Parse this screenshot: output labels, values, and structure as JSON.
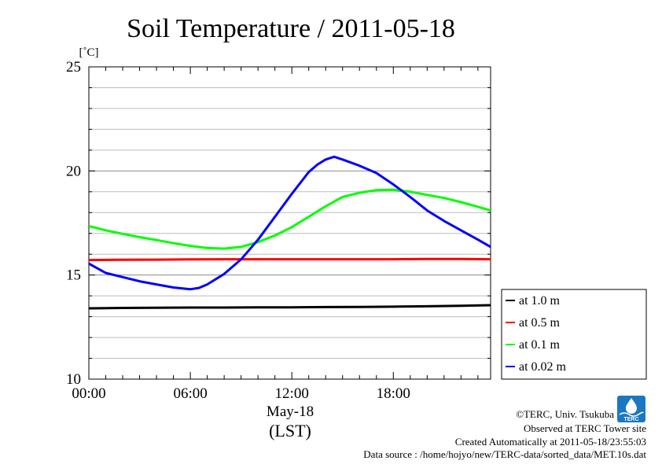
{
  "chart_data": {
    "type": "line",
    "title": "Soil Temperature / 2011-05-18",
    "ylabel_unit": "[˚C]",
    "xlabel": "(LST)",
    "date_label": "May-18",
    "ylim": [
      10,
      25
    ],
    "xlim": [
      0,
      23.75
    ],
    "y_ticks": [
      10,
      15,
      20,
      25
    ],
    "y_minor_step": 1,
    "x_ticks": [
      0,
      6,
      12,
      18
    ],
    "x_tick_labels": [
      "00:00",
      "06:00",
      "12:00",
      "18:00"
    ],
    "grid": true,
    "legend_position": "right",
    "series": [
      {
        "name": "at 1.0 m",
        "color": "#000000",
        "x": [
          0,
          2,
          4,
          6,
          8,
          10,
          12,
          14,
          16,
          18,
          20,
          22,
          23.75
        ],
        "y": [
          13.4,
          13.42,
          13.43,
          13.44,
          13.44,
          13.45,
          13.45,
          13.46,
          13.47,
          13.48,
          13.5,
          13.52,
          13.55
        ]
      },
      {
        "name": "at 0.5 m",
        "color": "#ff0000",
        "x": [
          0,
          2,
          4,
          6,
          8,
          10,
          12,
          14,
          16,
          18,
          20,
          22,
          23.75
        ],
        "y": [
          15.72,
          15.73,
          15.74,
          15.75,
          15.76,
          15.76,
          15.76,
          15.76,
          15.76,
          15.76,
          15.77,
          15.77,
          15.76
        ]
      },
      {
        "name": "at 0.1 m",
        "color": "#00ff00",
        "x": [
          0,
          1,
          2,
          3,
          4,
          5,
          6,
          7,
          8,
          9,
          10,
          11,
          12,
          13,
          14,
          15,
          16,
          17,
          18,
          19,
          20,
          21,
          22,
          23,
          23.75
        ],
        "y": [
          17.35,
          17.15,
          16.98,
          16.82,
          16.68,
          16.53,
          16.4,
          16.3,
          16.27,
          16.35,
          16.58,
          16.9,
          17.3,
          17.8,
          18.3,
          18.75,
          18.95,
          19.08,
          19.1,
          19.0,
          18.85,
          18.7,
          18.5,
          18.28,
          18.1
        ]
      },
      {
        "name": "at 0.02 m",
        "color": "#0000ff",
        "x": [
          0,
          1,
          2,
          3,
          4,
          5,
          6,
          6.5,
          7,
          8,
          9,
          10,
          11,
          12,
          13,
          13.5,
          14,
          14.5,
          15,
          16,
          17,
          18,
          19,
          20,
          21,
          22,
          23,
          23.75
        ],
        "y": [
          15.55,
          15.1,
          14.9,
          14.7,
          14.55,
          14.4,
          14.32,
          14.38,
          14.55,
          15.05,
          15.75,
          16.7,
          17.8,
          18.9,
          19.95,
          20.3,
          20.55,
          20.68,
          20.55,
          20.25,
          19.9,
          19.35,
          18.75,
          18.1,
          17.6,
          17.15,
          16.7,
          16.35
        ]
      }
    ]
  },
  "footer": {
    "copyright": "©TERC, Univ. Tsukuba",
    "observed": "Observed at TERC Tower site",
    "created": "Created Automatically at 2011-05-18/23:55:03",
    "source": "Data source : /home/hojyo/new/TERC-data/sorted_data/MET.10s.dat",
    "logo_text": "TERC"
  }
}
